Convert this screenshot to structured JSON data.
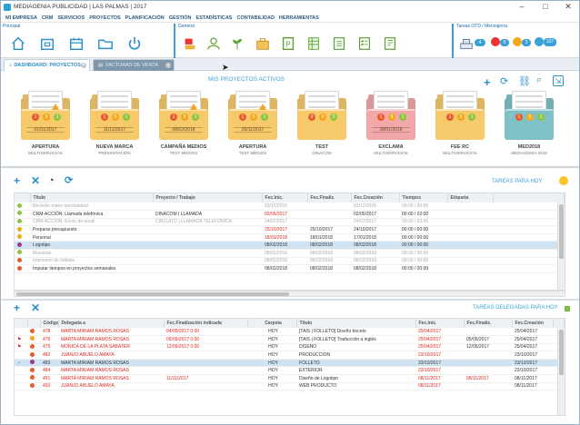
{
  "window": {
    "title": "MEDIAGENIA PUBLICIDAD | LAS PALMAS | 2017"
  },
  "menu": [
    "MI EMPRESA",
    "CRM",
    "SERVICIOS",
    "PROYECTOS",
    "PLANIFICACIÓN",
    "GESTIÓN",
    "ESTADÍSTICAS",
    "CONTABILIDAD",
    "HERRAMIENTAS"
  ],
  "ribbon": {
    "group_principal": "Principal",
    "group_general": "General",
    "group_tareas": "Tareas OTD / Mensajería",
    "badges": [
      "4",
      "0",
      "3",
      "107"
    ]
  },
  "tabs": [
    {
      "label": "DASHBOARD: PROYECTOS"
    },
    {
      "label": "FACTURAS DE VENTA"
    }
  ],
  "projects": {
    "title": "MIS PROYECTOS ACTIVOS",
    "items": [
      {
        "name": "APERTURA",
        "sub": "MULTISERVICIOS",
        "date": "01/01/2017",
        "color": "#f6c96b",
        "warn": true,
        "dots": [
          [
            "#e85c2a",
            "1"
          ],
          [
            "#f3a81b",
            "5"
          ],
          [
            "#8cc63f",
            "1"
          ]
        ]
      },
      {
        "name": "NUEVA MARCA",
        "sub": "PRESENTACIÓN",
        "date": "11/11/2017",
        "color": "#f6c96b",
        "warn": false,
        "dots": [
          [
            "#e85c2a",
            "1"
          ],
          [
            "#f3a81b",
            "5"
          ],
          [
            "#8cc63f",
            "1"
          ]
        ]
      },
      {
        "name": "CAMPAÑA MEDIOS",
        "sub": "TEST MEDIOS",
        "date": "08/02/2018",
        "color": "#f6c96b",
        "warn": true,
        "dots": [
          [
            "#e85c2a",
            "1"
          ],
          [
            "#f3a81b",
            "5"
          ],
          [
            "#8cc63f",
            "1"
          ]
        ]
      },
      {
        "name": "APERTURA",
        "sub": "TEST MEDIOS",
        "date": "20/11/2017",
        "color": "#f6c96b",
        "warn": true,
        "dots": [
          [
            "#e85c2a",
            "1"
          ],
          [
            "#f3a81b",
            "5"
          ],
          [
            "#8cc63f",
            "1"
          ]
        ]
      },
      {
        "name": "TEST",
        "sub": "DINACOM",
        "date": "",
        "color": "#f6c96b",
        "warn": false,
        "dots": [
          [
            "#e85c2a",
            "0"
          ],
          [
            "#f3a81b",
            "0"
          ],
          [
            "#8cc63f",
            "0"
          ]
        ]
      },
      {
        "name": "EXCLAMA",
        "sub": "MULTISERVICIOS",
        "date": "28/01/2018",
        "color": "#f2a8a8",
        "warn": false,
        "dots": [
          [
            "#e85c2a",
            "1"
          ],
          [
            "#f3a81b",
            "5"
          ],
          [
            "#8cc63f",
            "1"
          ]
        ]
      },
      {
        "name": "FEE RC",
        "sub": "MULTISERVICIOS",
        "date": "",
        "color": "#f6c96b",
        "warn": false,
        "dots": [
          [
            "#e85c2a",
            "1"
          ],
          [
            "#f3a81b",
            "5"
          ],
          [
            "#8cc63f",
            "1"
          ]
        ]
      },
      {
        "name": "MED2018",
        "sub": "MEDIAGENIA 2018",
        "date": "",
        "color": "#7fc1c7",
        "warn": false,
        "dots": [
          [
            "#e85c2a",
            "1"
          ],
          [
            "#f3a81b",
            "5"
          ],
          [
            "#8cc63f",
            "1"
          ]
        ]
      }
    ]
  },
  "tasks": {
    "label": "TAREAS PARA HOY",
    "headers": [
      "Título",
      "Proyecto / Trabajo",
      "Fec.Inic.",
      "Fec.Finaliz.",
      "Fec.Creación",
      "Tiempos",
      "Etiqueta"
    ],
    "rows": [
      {
        "dot": "#8cc63f",
        "muted": true,
        "sel": false,
        "c": [
          "Revisión mano oportunidad",
          "",
          "03/12/2015",
          "",
          "03/12/2015",
          "00:00 / 00:00",
          ""
        ]
      },
      {
        "dot": "#8cc63f",
        "muted": false,
        "sel": false,
        "c": [
          "CRM-ACCIÓN: Llamada telefónica",
          "DINACOM | LLAMADA",
          "02/05/2017",
          "",
          "02/05/2017",
          "00:00 / 02:00",
          ""
        ],
        "red": [
          2
        ]
      },
      {
        "dot": "#8cc63f",
        "muted": true,
        "sel": false,
        "c": [
          "CRM-ACCIÓN: Envío de email",
          "CIRCUITO | LLAMADA TELEFÓNICA",
          "24/07/2017",
          "",
          "24/07/2017",
          "00:00 / 02:00",
          ""
        ]
      },
      {
        "dot": "#f3a81b",
        "muted": false,
        "sel": false,
        "c": [
          "Preparar presupuesto",
          "",
          "25/10/2017",
          "25/10/2017",
          "24/10/2017",
          "00:00 / 00:00",
          ""
        ],
        "red": [
          2
        ]
      },
      {
        "dot": "#f3a81b",
        "muted": false,
        "sel": false,
        "c": [
          "Personal",
          "",
          "18/01/2018",
          "18/01/2018",
          "17/01/2018",
          "00:00 / 00:00",
          ""
        ],
        "red": [
          2
        ]
      },
      {
        "dot": "#9a3a8a",
        "muted": false,
        "sel": true,
        "c": [
          "Logotipo",
          "",
          "08/02/2018",
          "08/02/2018",
          "08/02/2018",
          "00:00 / 00:00",
          ""
        ]
      },
      {
        "dot": "#8cc63f",
        "muted": true,
        "sel": false,
        "c": [
          "Muestras",
          "",
          "08/02/2018",
          "08/02/2018",
          "08/02/2018",
          "00:00 / 00:00",
          ""
        ]
      },
      {
        "dot": "#e85c2a",
        "muted": true,
        "sel": false,
        "c": [
          "Impresión de folletos",
          "",
          "08/02/2018",
          "08/02/2018",
          "08/02/2018",
          "00:00 / 00:00",
          ""
        ]
      },
      {
        "dot": "#e85c2a",
        "muted": false,
        "sel": false,
        "c": [
          "Imputar tiempos en proyectos semanales",
          "",
          "08/02/2018",
          "08/02/2018",
          "08/02/2018",
          "00:00 / 00:00",
          ""
        ]
      }
    ]
  },
  "delegated": {
    "label": "TAREAS DELEGADAS PARA HOY",
    "headers": [
      "Código",
      "Delegada a",
      "Fec.Finalización indicada",
      "Carpeta",
      "Título",
      "Fec.Inic.",
      "Fec.Finaliz.",
      "Fec.Creación"
    ],
    "rows": [
      {
        "flag": "",
        "dot": "#e85c2a",
        "sel": false,
        "red": [
          0,
          1,
          2,
          5
        ],
        "c": [
          "478",
          "MARTA MIRIAM RAMOS ROSAS",
          "04/05/2017 0:00",
          "HOY",
          "[TAIS | FOLLETO] Diseño boceto",
          "25/04/2017",
          "",
          "25/04/2017"
        ]
      },
      {
        "flag": "⚑",
        "dot": "#f3a81b",
        "sel": false,
        "red": [
          0,
          1,
          2,
          5
        ],
        "c": [
          "476",
          "MARTA MIRIAM RAMOS ROSAS",
          "05/05/2017 0:00",
          "HOY",
          "[TAIS | FOLLETO] Traducción a inglés",
          "25/04/2017",
          "05/05/2017",
          "25/04/2017"
        ]
      },
      {
        "flag": "⚑",
        "dot": "#e85c2a",
        "sel": false,
        "red": [
          0,
          1,
          2,
          5
        ],
        "c": [
          "475",
          "MONICA DE LA PLATA SABATER",
          "12/05/2017 0:00",
          "HOY",
          "DISEÑO",
          "25/04/2017",
          "12/05/2017",
          "25/04/2017"
        ]
      },
      {
        "flag": "",
        "dot": "#e85c2a",
        "sel": false,
        "red": [
          0,
          1,
          5
        ],
        "c": [
          "482",
          "JUANJO ABUELO AMAYA",
          "",
          "HOY",
          "PRODUCCION",
          "23/10/2017",
          "",
          "23/10/2017"
        ]
      },
      {
        "flag": "✓",
        "dot": "#9a3a8a",
        "sel": true,
        "red": [],
        "c": [
          "483",
          "MARTA MIRIAM RAMOS ROSAS",
          "",
          "HOY",
          "FOLLETO",
          "23/10/2017",
          "",
          "23/10/2017"
        ]
      },
      {
        "flag": "",
        "dot": "#e85c2a",
        "sel": false,
        "red": [
          0,
          1,
          5
        ],
        "c": [
          "484",
          "MARTA MIRIAM RAMOS ROSAS",
          "",
          "HOY",
          "EXTERIOR",
          "23/10/2017",
          "",
          "23/10/2017"
        ]
      },
      {
        "flag": "",
        "dot": "#e85c2a",
        "sel": false,
        "red": [
          0,
          1,
          2,
          5,
          6
        ],
        "c": [
          "491",
          "MARTA MIRIAM RAMOS ROSAS",
          "11/11/2017",
          "HOY",
          "Diseño de Logotipo",
          "08/11/2017",
          "08/11/2017",
          "08/11/2017"
        ]
      },
      {
        "flag": "",
        "dot": "#e85c2a",
        "sel": false,
        "red": [
          0,
          1,
          5
        ],
        "c": [
          "492",
          "JUANJO ABUELO AMAYA",
          "",
          "HOY",
          "WEB PRODUCTO",
          "08/11/2017",
          "",
          "08/11/2017"
        ]
      }
    ]
  }
}
